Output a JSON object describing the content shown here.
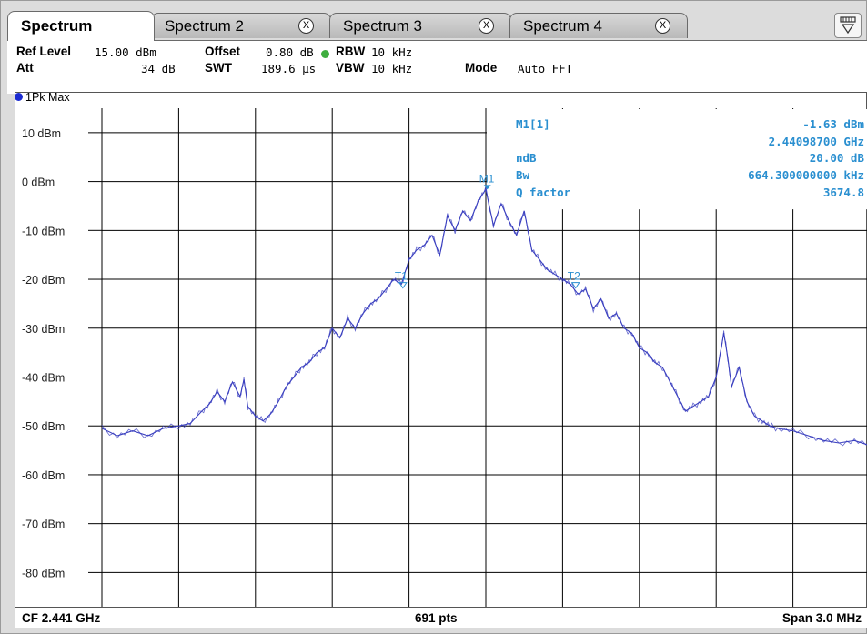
{
  "tabs": [
    {
      "label": "Spectrum",
      "active": true
    },
    {
      "label": "Spectrum 2",
      "close_icon": "close-icon"
    },
    {
      "label": "Spectrum 3",
      "close_icon": "close-icon"
    },
    {
      "label": "Spectrum 4",
      "close_icon": "close-icon"
    }
  ],
  "close_glyph": "X",
  "menu_icon": "trace-menu-icon",
  "settings": {
    "ref_level_key": "Ref Level",
    "ref_level_val": "15.00 dBm",
    "offset_key": "Offset",
    "offset_val": "0.80 dB",
    "rbw_key": "RBW",
    "rbw_val": "10 kHz",
    "att_key": "Att",
    "att_val": "34 dB",
    "swt_key": "SWT",
    "swt_val": "189.6 µs",
    "vbw_key": "VBW",
    "vbw_val": "10 kHz",
    "mode_key": "Mode",
    "mode_val": "Auto FFT"
  },
  "trace_label": "1Pk Max",
  "marker_table": {
    "m1_label": "M1[1]",
    "m1_level": "-1.63 dBm",
    "m1_freq": "2.44098700 GHz",
    "ndb_label": "ndB",
    "ndb_val": "20.00 dB",
    "bw_label": "Bw",
    "bw_val": "664.300000000 kHz",
    "q_label": "Q factor",
    "q_val": "3674.8"
  },
  "footer": {
    "cf": "CF 2.441 GHz",
    "pts": "691 pts",
    "span": "Span 3.0 MHz"
  },
  "colors": {
    "trace": "#3a3fbf",
    "marker_text": "#2a8fd0",
    "grid": "#000000",
    "rbw_dot": "#3fae3f"
  },
  "chart_data": {
    "type": "line",
    "ylabel_ticks": [
      "10 dBm",
      "0 dBm",
      "-10 dBm",
      "-20 dBm",
      "-30 dBm",
      "-40 dBm",
      "-50 dBm",
      "-60 dBm",
      "-70 dBm",
      "-80 dBm"
    ],
    "ylim": [
      -87,
      15
    ],
    "x_center_ghz": 2.441,
    "span_mhz": 3.0,
    "grid": true,
    "markers": [
      {
        "label": "M1",
        "x_frac": 0.502,
        "y_dbm": -1.63
      },
      {
        "label": "T1",
        "x_frac": 0.392,
        "y_dbm": -21.6
      },
      {
        "label": "T2",
        "x_frac": 0.617,
        "y_dbm": -21.6
      }
    ],
    "series": [
      {
        "x": [
          0.0,
          0.02,
          0.04,
          0.06,
          0.08,
          0.1,
          0.115,
          0.13,
          0.14,
          0.15,
          0.16,
          0.17,
          0.18,
          0.185,
          0.19,
          0.2,
          0.21,
          0.22,
          0.23,
          0.24,
          0.25,
          0.26,
          0.27,
          0.28,
          0.29,
          0.3,
          0.31,
          0.32,
          0.33,
          0.34,
          0.35,
          0.36,
          0.37,
          0.38,
          0.39,
          0.4,
          0.41,
          0.42,
          0.43,
          0.44,
          0.45,
          0.46,
          0.47,
          0.48,
          0.49,
          0.5,
          0.51,
          0.52,
          0.53,
          0.54,
          0.55,
          0.56,
          0.57,
          0.58,
          0.59,
          0.6,
          0.61,
          0.62,
          0.63,
          0.64,
          0.65,
          0.66,
          0.67,
          0.68,
          0.69,
          0.7,
          0.71,
          0.72,
          0.73,
          0.74,
          0.75,
          0.76,
          0.77,
          0.78,
          0.79,
          0.8,
          0.81,
          0.815,
          0.82,
          0.83,
          0.84,
          0.85,
          0.86,
          0.87,
          0.88,
          0.9,
          0.92,
          0.94,
          0.96,
          0.98,
          1.0
        ],
        "y": [
          -50.5,
          -52,
          -51,
          -52,
          -50.5,
          -50,
          -49.5,
          -47,
          -45.5,
          -43,
          -45,
          -41,
          -44,
          -40.5,
          -46,
          -48,
          -49,
          -47.5,
          -45,
          -42,
          -40,
          -38,
          -37,
          -35,
          -34,
          -30,
          -32,
          -28,
          -30,
          -27,
          -25,
          -24,
          -22,
          -20,
          -21,
          -16,
          -14,
          -13,
          -11,
          -15,
          -7,
          -10,
          -6,
          -8,
          -4,
          -1.6,
          -9,
          -4.5,
          -8,
          -11,
          -6,
          -14,
          -16,
          -18,
          -19,
          -20,
          -21,
          -23,
          -22,
          -26,
          -24,
          -28,
          -27,
          -30,
          -31,
          -34,
          -35,
          -37,
          -38,
          -41,
          -44,
          -47,
          -46,
          -45,
          -44,
          -40,
          -31,
          -36,
          -42,
          -38,
          -45,
          -48,
          -49,
          -50,
          -50.5,
          -51,
          -52,
          -53,
          -53.5,
          -53,
          -54
        ]
      }
    ]
  }
}
